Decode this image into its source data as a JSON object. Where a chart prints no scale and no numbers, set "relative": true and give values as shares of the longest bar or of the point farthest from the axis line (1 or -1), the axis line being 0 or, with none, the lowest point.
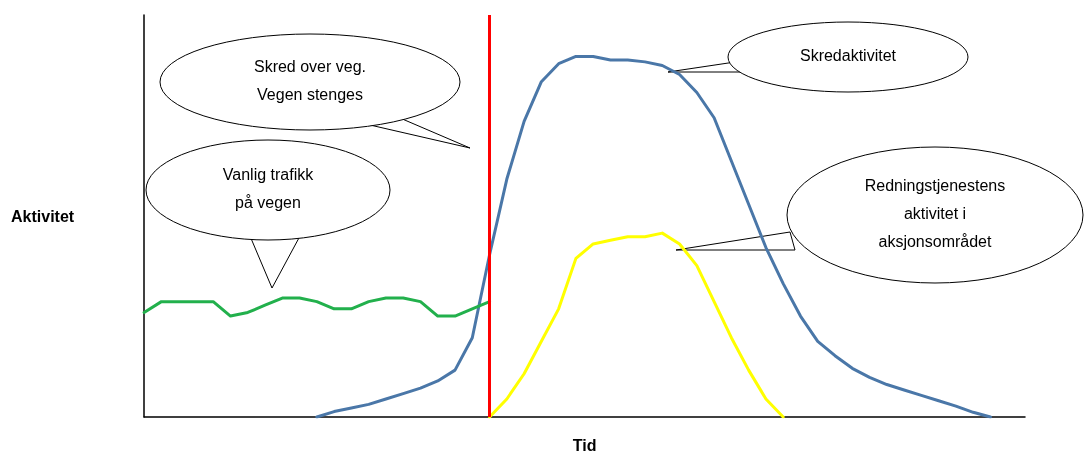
{
  "chart_data": {
    "type": "line",
    "relative": true,
    "xlabel": "Tid",
    "ylabel": "Aktivitet",
    "line_style": "solid",
    "categories": [
      null,
      null,
      null,
      null,
      null,
      null,
      null,
      null,
      null,
      null,
      null,
      null,
      null,
      null,
      null,
      null,
      null,
      null,
      null,
      null,
      null,
      null,
      null,
      null,
      null,
      null,
      null,
      null,
      null,
      null,
      null,
      null,
      null,
      null,
      null,
      null,
      null,
      null,
      null,
      null,
      null,
      null,
      null,
      null,
      null,
      null,
      null,
      null,
      null,
      null,
      null,
      null
    ],
    "series": [
      {
        "color": "#4a77a8",
        "values": [
          null,
          null,
          null,
          null,
          null,
          null,
          null,
          null,
          null,
          null,
          0,
          0.015,
          0.025,
          0.035,
          0.05,
          0.065,
          0.08,
          0.1,
          0.13,
          0.22,
          0.45,
          0.66,
          0.82,
          0.93,
          0.98,
          1.0,
          1.0,
          0.99,
          0.99,
          0.985,
          0.975,
          0.95,
          0.9,
          0.83,
          0.71,
          0.59,
          0.47,
          0.37,
          0.28,
          0.21,
          0.17,
          0.135,
          0.11,
          0.09,
          0.075,
          0.06,
          0.045,
          0.03,
          0.013,
          0,
          null,
          null
        ]
      },
      {
        "color": "#ffff00",
        "values": [
          null,
          null,
          null,
          null,
          null,
          null,
          null,
          null,
          null,
          null,
          null,
          null,
          null,
          null,
          null,
          null,
          null,
          null,
          null,
          null,
          0,
          0.05,
          0.12,
          0.21,
          0.3,
          0.44,
          0.48,
          0.49,
          0.5,
          0.5,
          0.51,
          0.48,
          0.42,
          0.32,
          0.22,
          0.13,
          0.05,
          0,
          null,
          null,
          null,
          null,
          null,
          null,
          null,
          null,
          null,
          null,
          null,
          null,
          null,
          null
        ]
      },
      {
        "color": "#22b04c",
        "values": [
          0.29,
          0.32,
          0.32,
          0.32,
          0.32,
          0.28,
          0.29,
          0.31,
          0.33,
          0.33,
          0.32,
          0.3,
          0.3,
          0.32,
          0.33,
          0.33,
          0.32,
          0.28,
          0.28,
          0.3,
          0.32,
          null,
          null,
          null,
          null,
          null,
          null,
          null,
          null,
          null,
          null,
          null,
          null,
          null,
          null,
          null,
          null,
          null,
          null,
          null,
          null,
          null,
          null,
          null,
          null,
          null,
          null,
          null,
          null,
          null,
          null,
          null
        ]
      }
    ],
    "annotations": [
      "Skred over veg.\nVegen stenges",
      "Skredaktivitet",
      "Vanlig trafikk\npå vegen",
      "Redningstjenestens\naktivitet i\naksjonsområdet"
    ]
  }
}
